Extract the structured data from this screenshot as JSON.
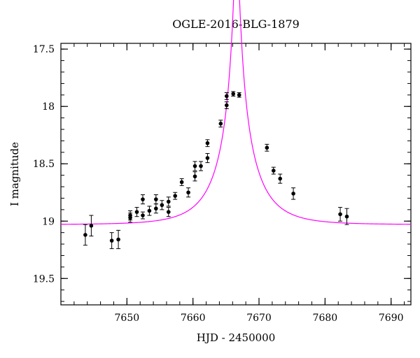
{
  "chart_data": {
    "type": "scatter",
    "title": "OGLE-2016-BLG-1879",
    "xlabel": "HJD - 2450000",
    "ylabel": "I magnitude",
    "xlim": [
      7640,
      7693
    ],
    "ylim": [
      17.45,
      19.73
    ],
    "y_inverted": true,
    "grid": false,
    "legend": "none",
    "x_ticks": [
      7650,
      7660,
      7670,
      7680,
      7690
    ],
    "x_tick_labels": [
      "7650",
      "7660",
      "7670",
      "7680",
      "7690"
    ],
    "y_ticks": [
      17.5,
      18,
      18.5,
      19,
      19.5
    ],
    "y_tick_labels": [
      "17.5",
      "18",
      "18.5",
      "19",
      "19.5"
    ],
    "series": [
      {
        "kind": "points_with_errorbars",
        "color": "#000000",
        "points": [
          {
            "x": 7643.7,
            "y": 19.12,
            "err": 0.09
          },
          {
            "x": 7644.6,
            "y": 19.04,
            "err": 0.09
          },
          {
            "x": 7647.7,
            "y": 19.17,
            "err": 0.07
          },
          {
            "x": 7648.7,
            "y": 19.16,
            "err": 0.08
          },
          {
            "x": 7650.5,
            "y": 18.95,
            "err": 0.04
          },
          {
            "x": 7650.5,
            "y": 18.97,
            "err": 0.04
          },
          {
            "x": 7651.5,
            "y": 18.92,
            "err": 0.04
          },
          {
            "x": 7652.4,
            "y": 18.81,
            "err": 0.04
          },
          {
            "x": 7652.4,
            "y": 18.95,
            "err": 0.03
          },
          {
            "x": 7653.4,
            "y": 18.91,
            "err": 0.04
          },
          {
            "x": 7654.4,
            "y": 18.81,
            "err": 0.04
          },
          {
            "x": 7654.4,
            "y": 18.89,
            "err": 0.04
          },
          {
            "x": 7655.3,
            "y": 18.86,
            "err": 0.04
          },
          {
            "x": 7656.3,
            "y": 18.83,
            "err": 0.04
          },
          {
            "x": 7656.3,
            "y": 18.92,
            "err": 0.04
          },
          {
            "x": 7657.3,
            "y": 18.78,
            "err": 0.03
          },
          {
            "x": 7658.3,
            "y": 18.66,
            "err": 0.03
          },
          {
            "x": 7659.3,
            "y": 18.75,
            "err": 0.04
          },
          {
            "x": 7660.3,
            "y": 18.61,
            "err": 0.04
          },
          {
            "x": 7660.3,
            "y": 18.52,
            "err": 0.04
          },
          {
            "x": 7661.2,
            "y": 18.52,
            "err": 0.04
          },
          {
            "x": 7662.2,
            "y": 18.45,
            "err": 0.04
          },
          {
            "x": 7662.2,
            "y": 18.32,
            "err": 0.03
          },
          {
            "x": 7664.2,
            "y": 18.15,
            "err": 0.03
          },
          {
            "x": 7665.1,
            "y": 17.99,
            "err": 0.03
          },
          {
            "x": 7665.1,
            "y": 17.91,
            "err": 0.03
          },
          {
            "x": 7666.1,
            "y": 17.89,
            "err": 0.02
          },
          {
            "x": 7667.0,
            "y": 17.9,
            "err": 0.02
          },
          {
            "x": 7671.2,
            "y": 18.36,
            "err": 0.03
          },
          {
            "x": 7672.2,
            "y": 18.56,
            "err": 0.03
          },
          {
            "x": 7673.2,
            "y": 18.63,
            "err": 0.04
          },
          {
            "x": 7675.2,
            "y": 18.76,
            "err": 0.05
          },
          {
            "x": 7682.3,
            "y": 18.94,
            "err": 0.06
          },
          {
            "x": 7683.3,
            "y": 18.96,
            "err": 0.07
          }
        ]
      },
      {
        "kind": "model_curve",
        "color": "#ff00ff",
        "model": {
          "t0": 7666.6,
          "u0": 0.06,
          "tE": 6.0,
          "fs": 0.54,
          "m_base": 19.03
        }
      }
    ]
  }
}
